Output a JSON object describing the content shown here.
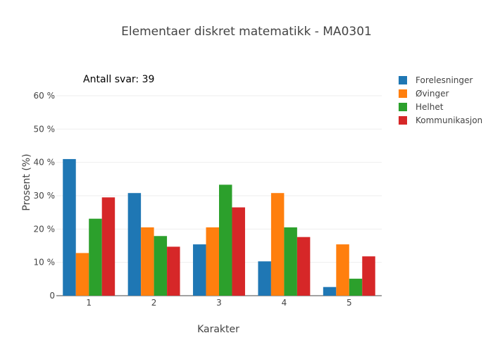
{
  "chart_data": {
    "type": "bar",
    "title": "Elementaer diskret matematikk - MA0301",
    "xlabel": "Karakter",
    "ylabel": "Prosent (%)",
    "annotation": "Antall svar: 39",
    "categories": [
      "1",
      "2",
      "3",
      "4",
      "5"
    ],
    "ylim": [
      0,
      60
    ],
    "y_ticks": [
      0,
      10,
      20,
      30,
      40,
      50,
      60
    ],
    "y_tick_labels": [
      "0",
      "10 %",
      "20 %",
      "30 %",
      "40 %",
      "50 %",
      "60 %"
    ],
    "grid": true,
    "legend_position": "top-right",
    "series": [
      {
        "name": "Forelesninger",
        "color": "#1f77b4",
        "values": [
          41.0,
          30.8,
          15.4,
          10.3,
          2.6
        ]
      },
      {
        "name": "Øvinger",
        "color": "#ff7f0e",
        "values": [
          12.8,
          20.5,
          20.5,
          30.8,
          15.4
        ]
      },
      {
        "name": "Helhet",
        "color": "#2ca02c",
        "values": [
          23.1,
          17.9,
          33.3,
          20.5,
          5.1
        ]
      },
      {
        "name": "Kommunikasjon",
        "color": "#d62728",
        "values": [
          29.5,
          14.7,
          26.5,
          17.6,
          11.8
        ]
      }
    ]
  }
}
